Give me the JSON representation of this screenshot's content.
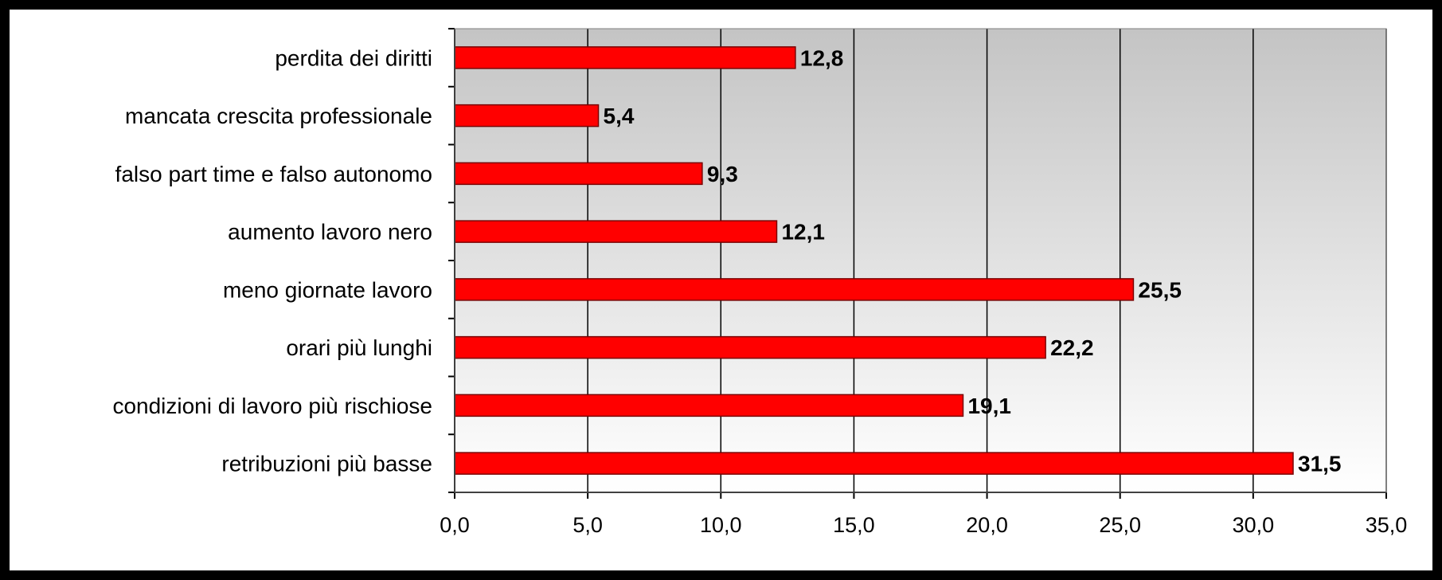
{
  "chart_data": {
    "type": "bar",
    "orientation": "horizontal",
    "categories": [
      "perdita dei diritti",
      "mancata crescita professionale",
      "falso part time e falso autonomo",
      "aumento lavoro nero",
      "meno giornate lavoro",
      "orari più lunghi",
      "condizioni di lavoro più rischiose",
      "retribuzioni più basse"
    ],
    "values": [
      12.8,
      5.4,
      9.3,
      12.1,
      25.5,
      22.2,
      19.1,
      31.5
    ],
    "value_labels": [
      "12,8",
      "5,4",
      "9,3",
      "12,1",
      "25,5",
      "22,2",
      "19,1",
      "31,5"
    ],
    "xlim": [
      0,
      35
    ],
    "x_ticks": [
      0,
      5,
      10,
      15,
      20,
      25,
      30,
      35
    ],
    "x_tick_labels": [
      "0,0",
      "5,0",
      "10,0",
      "15,0",
      "20,0",
      "25,0",
      "30,0",
      "35,0"
    ],
    "title": "",
    "xlabel": "",
    "ylabel": "",
    "grid": "vertical",
    "legend": "none",
    "colors": {
      "bar_fill": "#ff0000",
      "bar_edge": "#7a0000",
      "plot_bg_top": "#c4c4c4",
      "plot_bg_bottom": "#ffffff",
      "gridline": "#000000",
      "frame": "#000000"
    }
  }
}
